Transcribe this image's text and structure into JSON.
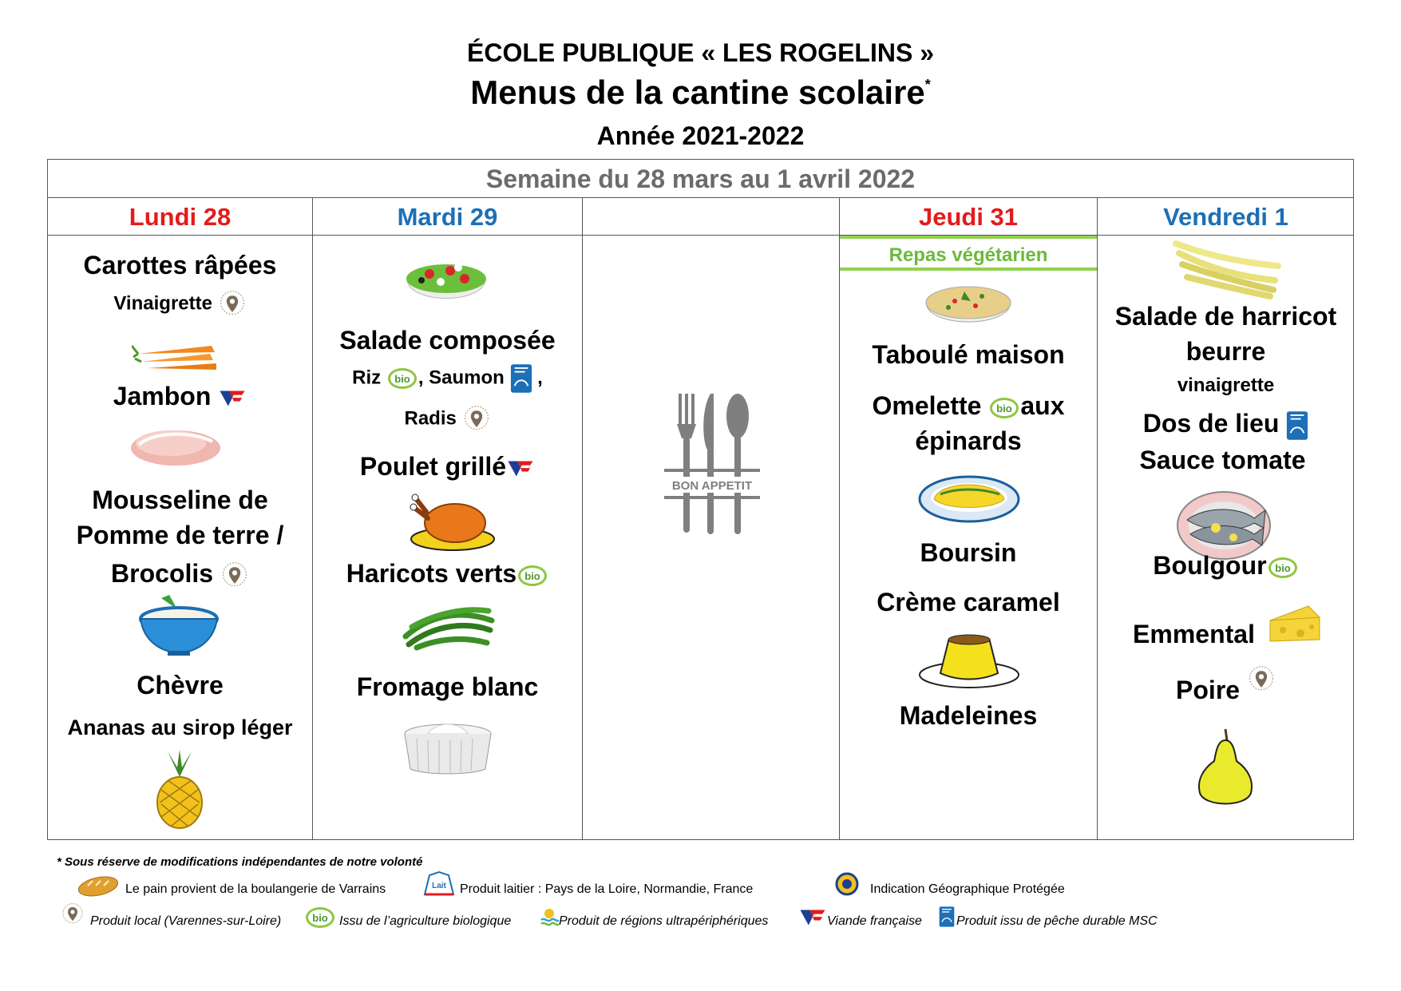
{
  "header": {
    "school": "ÉCOLE PUBLIQUE « LES ROGELINS »",
    "title": "Menus de la cantine scolaire",
    "title_mark": "*",
    "year": "Année 2021-2022"
  },
  "week": "Semaine du 28 mars au 1 avril  2022",
  "days": {
    "mon": "Lundi 28",
    "tue": "Mardi 29",
    "wed": "",
    "thu": "Jeudi 31",
    "fri": "Vendredi 1"
  },
  "mon": {
    "starter": "Carottes râpées",
    "starter_sauce": "Vinaigrette",
    "main": "Jambon",
    "side1": "Mousseline de",
    "side2": "Pomme de terre /",
    "side3": "Brocolis",
    "cheese": "Chèvre",
    "dessert": "Ananas au sirop léger"
  },
  "tue": {
    "starter": "Salade composée",
    "riz": "Riz",
    "saumon": ", Saumon",
    "comma": ",",
    "radis": "Radis",
    "main": "Poulet grillé",
    "side": "Haricots verts",
    "dessert": "Fromage blanc"
  },
  "wed": {
    "logo_text": "BON APPETIT"
  },
  "thu": {
    "banner": "Repas végétarien",
    "starter": "Taboulé maison",
    "main1": "Omelette",
    "main1b": "aux",
    "main2": "épinards",
    "cheese": "Boursin",
    "dessert1": "Crème caramel",
    "dessert2": "Madeleines"
  },
  "fri": {
    "starter1": "Salade de harricot",
    "starter2": "beurre",
    "starter_sauce": "vinaigrette",
    "main": "Dos de lieu",
    "main_sauce": "Sauce tomate",
    "side": "Boulgour",
    "cheese": "Emmental",
    "dessert": "Poire"
  },
  "footer": {
    "note": "* Sous réserve de modifications indépendantes de notre volonté",
    "bread": "Le pain provient de la boulangerie de Varrains",
    "dairy": "Produit laitier : Pays de la Loire, Normandie, France",
    "igp": "Indication Géographique Protégée",
    "local": "Produit local (Varennes-sur-Loire)",
    "bio": "Issu de l’agriculture biologique",
    "ultra": "Produit de régions ultrapériphériques",
    "viande": "Viande française",
    "msc": "Produit issu de pêche durable MSC"
  },
  "icons": {
    "bio_text": "bio",
    "lait_text": "Lait"
  },
  "colors": {
    "red": "#e31b1b",
    "blue": "#1c6fb6",
    "green": "#6cba3a",
    "grey": "#6b6b6b"
  }
}
